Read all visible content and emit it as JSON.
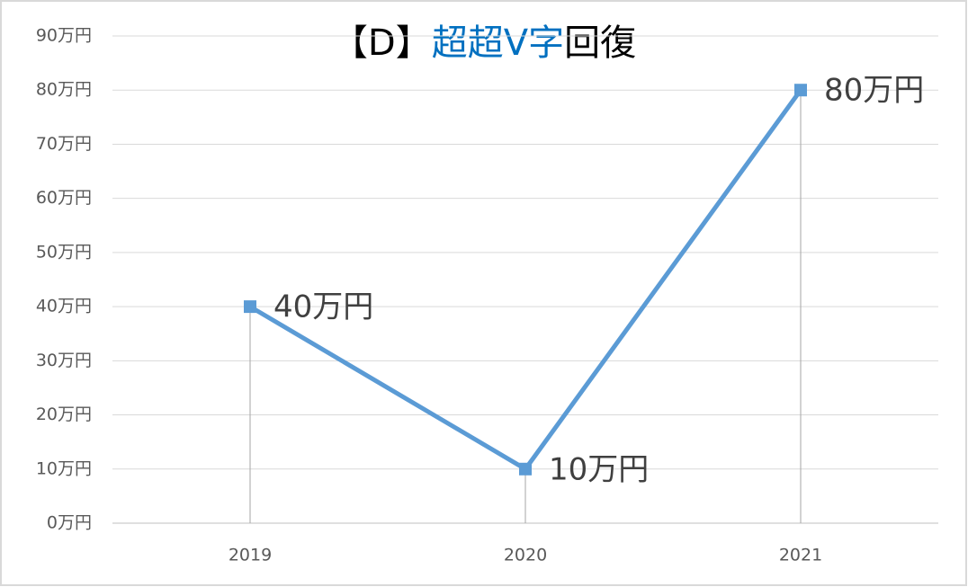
{
  "chart_data": {
    "type": "line",
    "title": [
      {
        "text": "【D】",
        "color": "#000000"
      },
      {
        "text": "超超V字",
        "color": "#0070c0"
      },
      {
        "text": "回復",
        "color": "#000000"
      }
    ],
    "categories": [
      "2019",
      "2020",
      "2021"
    ],
    "values": [
      40,
      10,
      80
    ],
    "value_labels": [
      "40万円",
      "10万円",
      "80万円"
    ],
    "color": "#5b9bd5",
    "drop_lines": true,
    "ylim": [
      0,
      90
    ],
    "yticks": [
      {
        "value": 0,
        "label": "0万円"
      },
      {
        "value": 10,
        "label": "10万円"
      },
      {
        "value": 20,
        "label": "20万円"
      },
      {
        "value": 30,
        "label": "30万円"
      },
      {
        "value": 40,
        "label": "40万円"
      },
      {
        "value": 50,
        "label": "50万円"
      },
      {
        "value": 60,
        "label": "60万円"
      },
      {
        "value": 70,
        "label": "70万円"
      },
      {
        "value": 80,
        "label": "80万円"
      },
      {
        "value": 90,
        "label": "90万円"
      }
    ],
    "grid": true
  }
}
